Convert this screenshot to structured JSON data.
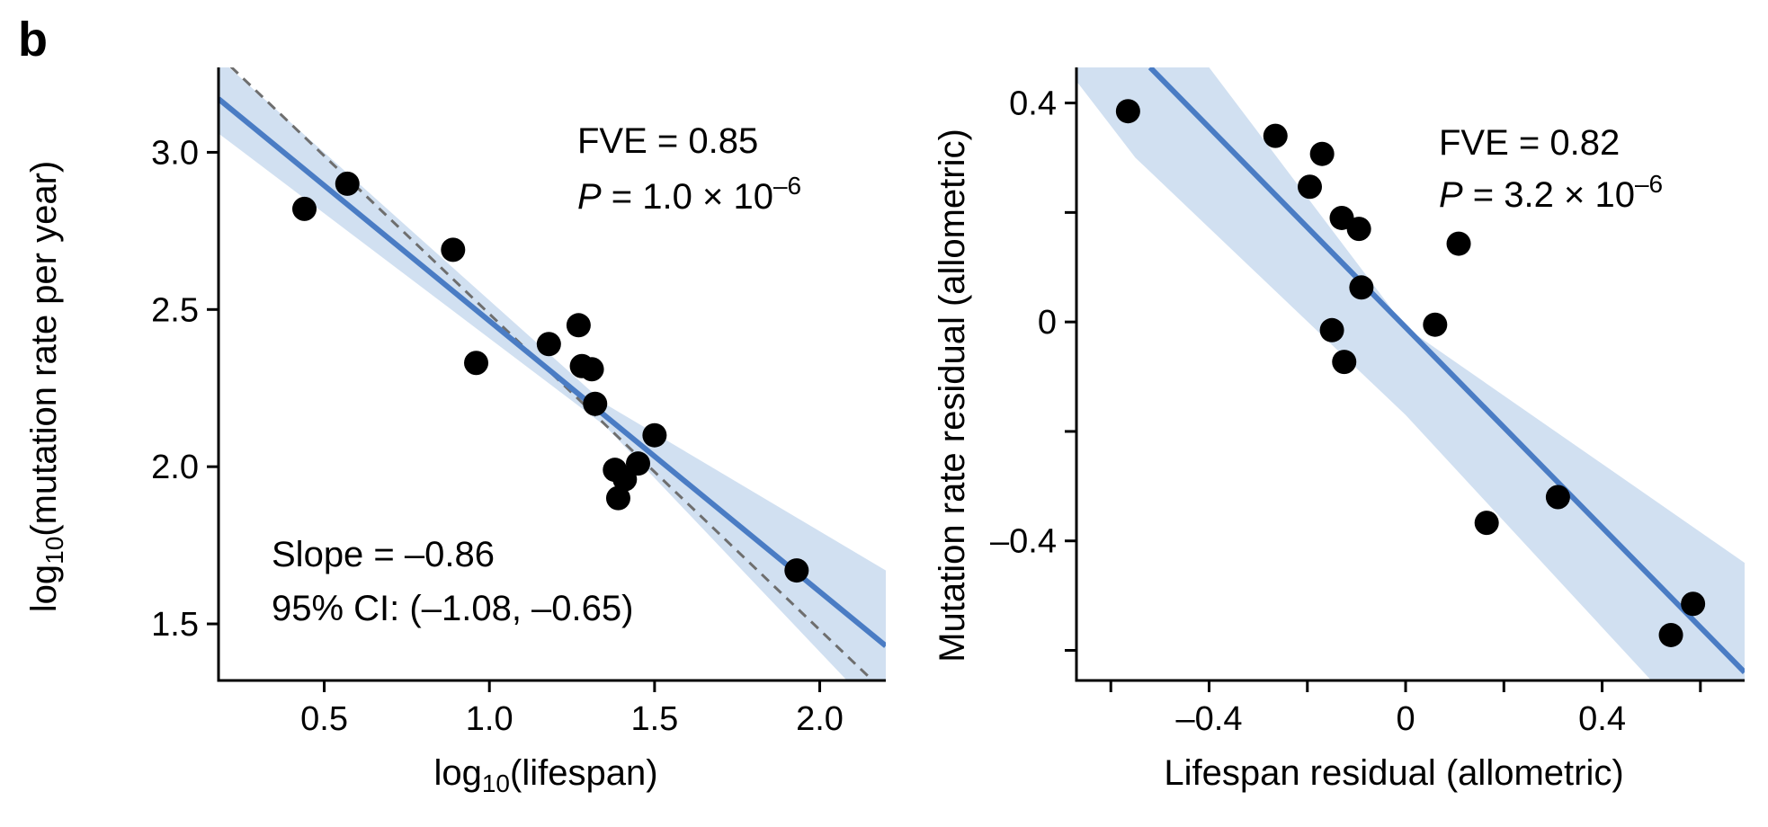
{
  "panel_label": "b",
  "chart_data": [
    {
      "type": "scatter",
      "xlabel_base": "log",
      "xlabel_sub": "10",
      "xlabel_rest": "(lifespan)",
      "ylabel_base": "log",
      "ylabel_sub": "10",
      "ylabel_rest": "(mutation rate per year)",
      "xlim": [
        0.18,
        2.2
      ],
      "ylim": [
        1.32,
        3.27
      ],
      "xticks": [
        0.5,
        1.0,
        1.5,
        2.0
      ],
      "xtick_labels": [
        "0.5",
        "1.0",
        "1.5",
        "2.0"
      ],
      "yticks": [
        1.5,
        2.0,
        2.5,
        3.0
      ],
      "ytick_labels": [
        "1.5",
        "2.0",
        "2.5",
        "3.0"
      ],
      "points": [
        {
          "x": 0.44,
          "y": 2.82
        },
        {
          "x": 0.57,
          "y": 2.9
        },
        {
          "x": 0.89,
          "y": 2.69
        },
        {
          "x": 0.96,
          "y": 2.33
        },
        {
          "x": 1.18,
          "y": 2.39
        },
        {
          "x": 1.27,
          "y": 2.45
        },
        {
          "x": 1.28,
          "y": 2.32
        },
        {
          "x": 1.31,
          "y": 2.31
        },
        {
          "x": 1.32,
          "y": 2.2
        },
        {
          "x": 1.38,
          "y": 1.99
        },
        {
          "x": 1.39,
          "y": 1.9
        },
        {
          "x": 1.41,
          "y": 1.96
        },
        {
          "x": 1.45,
          "y": 2.01
        },
        {
          "x": 1.5,
          "y": 2.1
        },
        {
          "x": 1.93,
          "y": 1.67
        }
      ],
      "fit_line": [
        [
          0.18,
          3.17
        ],
        [
          2.2,
          1.43
        ]
      ],
      "ci_upper": [
        [
          0.18,
          3.3
        ],
        [
          1.35,
          2.2
        ],
        [
          2.2,
          1.67
        ]
      ],
      "ci_lower": [
        [
          0.18,
          3.06
        ],
        [
          1.35,
          2.13
        ],
        [
          2.2,
          1.19
        ]
      ],
      "reference_line": [
        [
          0.18,
          3.31
        ],
        [
          2.2,
          1.28
        ]
      ],
      "annotation_fve": "FVE = 0.85",
      "annotation_p_italic": "P",
      "annotation_p_value": " = 1.0 × 10",
      "annotation_p_exp": "–6",
      "annotation_slope": "Slope = –0.86",
      "annotation_ci": "95% CI: (–1.08, –0.65)",
      "colors": {
        "fit": "#4a7cc4",
        "ci_band": "#d1e0f1",
        "reference": "#6e6e6e",
        "points": "#000000"
      }
    },
    {
      "type": "scatter",
      "xlabel": "Lifespan residual (allometric)",
      "ylabel": "Mutation rate residual (allometric)",
      "xlim": [
        -0.67,
        0.69
      ],
      "ylim": [
        -0.655,
        0.465
      ],
      "xticks": [
        -0.6,
        -0.4,
        -0.2,
        0,
        0.2,
        0.4,
        0.6
      ],
      "xtick_labels": [
        "",
        "–0.4",
        "",
        "0",
        "",
        "0.4",
        ""
      ],
      "yticks": [
        -0.6,
        -0.4,
        -0.2,
        0,
        0.2,
        0.4
      ],
      "ytick_labels": [
        "",
        "–0.4",
        "",
        "0",
        "",
        "0.4"
      ],
      "points": [
        {
          "x": -0.565,
          "y": 0.385
        },
        {
          "x": -0.265,
          "y": 0.34
        },
        {
          "x": -0.17,
          "y": 0.307
        },
        {
          "x": -0.195,
          "y": 0.247
        },
        {
          "x": -0.13,
          "y": 0.19
        },
        {
          "x": -0.095,
          "y": 0.17
        },
        {
          "x": -0.09,
          "y": 0.063
        },
        {
          "x": 0.108,
          "y": 0.143
        },
        {
          "x": -0.15,
          "y": -0.015
        },
        {
          "x": -0.125,
          "y": -0.073
        },
        {
          "x": 0.06,
          "y": -0.005
        },
        {
          "x": 0.165,
          "y": -0.367
        },
        {
          "x": 0.31,
          "y": -0.32
        },
        {
          "x": 0.54,
          "y": -0.572
        },
        {
          "x": 0.585,
          "y": -0.515
        }
      ],
      "fit_line": [
        [
          -0.52,
          0.465
        ],
        [
          0.69,
          -0.64
        ]
      ],
      "ci_upper": [
        [
          -0.67,
          0.465
        ],
        [
          -0.4,
          0.465
        ],
        [
          0.0,
          -0.01
        ],
        [
          0.69,
          -0.44
        ]
      ],
      "ci_lower": [
        [
          -0.67,
          0.44
        ],
        [
          -0.55,
          0.3
        ],
        [
          0.0,
          -0.17
        ],
        [
          0.5,
          -0.655
        ],
        [
          0.69,
          -0.655
        ]
      ],
      "annotation_fve": "FVE = 0.82",
      "annotation_p_italic": "P",
      "annotation_p_value": " = 3.2 × 10",
      "annotation_p_exp": "–6",
      "colors": {
        "fit": "#4a7cc4",
        "ci_band": "#d1e0f1",
        "points": "#000000"
      }
    }
  ]
}
